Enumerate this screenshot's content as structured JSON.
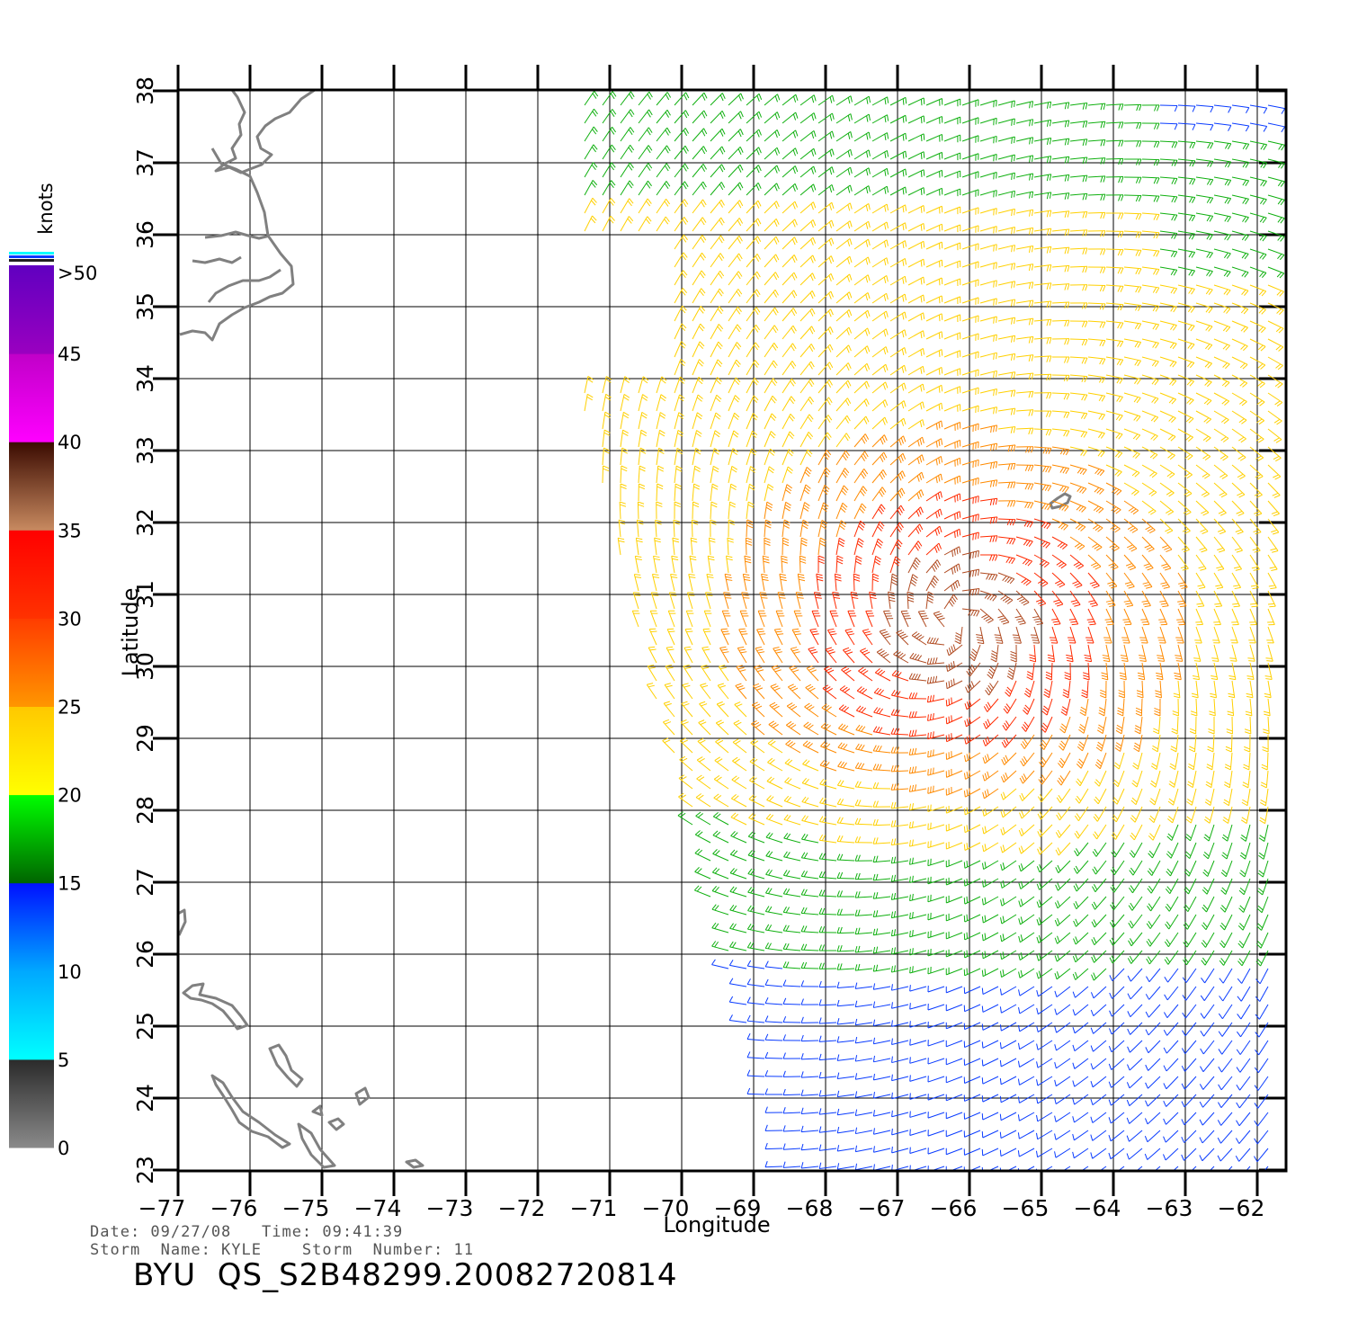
{
  "map": {
    "x_axis_label": "Longitude",
    "y_axis_label": "Latitude",
    "lon_ticks": [
      "-77",
      "-76",
      "-75",
      "-74",
      "-73",
      "-72",
      "-71",
      "-70",
      "-69",
      "-68",
      "-67",
      "-66",
      "-65",
      "-64",
      "-63",
      "-62"
    ],
    "lat_ticks": [
      "23",
      "24",
      "25",
      "26",
      "27",
      "28",
      "29",
      "30",
      "31",
      "32",
      "33",
      "34",
      "35",
      "36",
      "37",
      "38"
    ],
    "lon_range": [
      -77,
      -61.6
    ],
    "lat_range": [
      23,
      38
    ],
    "grid": true
  },
  "colorbar": {
    "units": "knots",
    "labels": [
      "0",
      "5",
      "10",
      "15",
      "20",
      "25",
      "30",
      "35",
      "40",
      "45",
      ">50"
    ],
    "color_bands": [
      {
        "from": 0,
        "to": 5,
        "colors": [
          "#8a8a8a",
          "#2a2a2a"
        ]
      },
      {
        "from": 5,
        "to": 10,
        "colors": [
          "#00ffff",
          "#00a8ff"
        ]
      },
      {
        "from": 10,
        "to": 15,
        "colors": [
          "#00a8ff",
          "#0010ff"
        ]
      },
      {
        "from": 15,
        "to": 20,
        "colors": [
          "#006400",
          "#00ff00"
        ]
      },
      {
        "from": 20,
        "to": 25,
        "colors": [
          "#ffff00",
          "#ffc800"
        ]
      },
      {
        "from": 25,
        "to": 30,
        "colors": [
          "#ff9600",
          "#ff3c00"
        ]
      },
      {
        "from": 30,
        "to": 35,
        "colors": [
          "#ff3200",
          "#ff0000"
        ]
      },
      {
        "from": 35,
        "to": 40,
        "colors": [
          "#c88a60",
          "#3a0a00"
        ]
      },
      {
        "from": 40,
        "to": 45,
        "colors": [
          "#ff00ff",
          "#c000c8"
        ]
      },
      {
        "from": 45,
        "to": 50,
        "colors": [
          "#9a00c0",
          "#6000c0"
        ]
      }
    ]
  },
  "metadata": {
    "line1": "Date: 09/27/08   Time: 09:41:39",
    "line2": "Storm  Name: KYLE    Storm  Number: 11",
    "product_id": "BYU  QS_S2B48299.20082720814"
  },
  "storm": {
    "name": "KYLE",
    "approx_center": {
      "lon": -66.2,
      "lat": 30.6
    },
    "speed_colors": {
      "lt15": "#0a3cff",
      "15_20": "#10b010",
      "20_25": "#ffd000",
      "25_30": "#ff8a00",
      "30_35": "#ff2a00",
      "35_40": "#b04a20",
      "40_45": "#c000c8"
    }
  },
  "coastlines": {
    "color": "#808080",
    "regions": [
      "north-carolina-coast",
      "bahamas",
      "bermuda"
    ]
  }
}
